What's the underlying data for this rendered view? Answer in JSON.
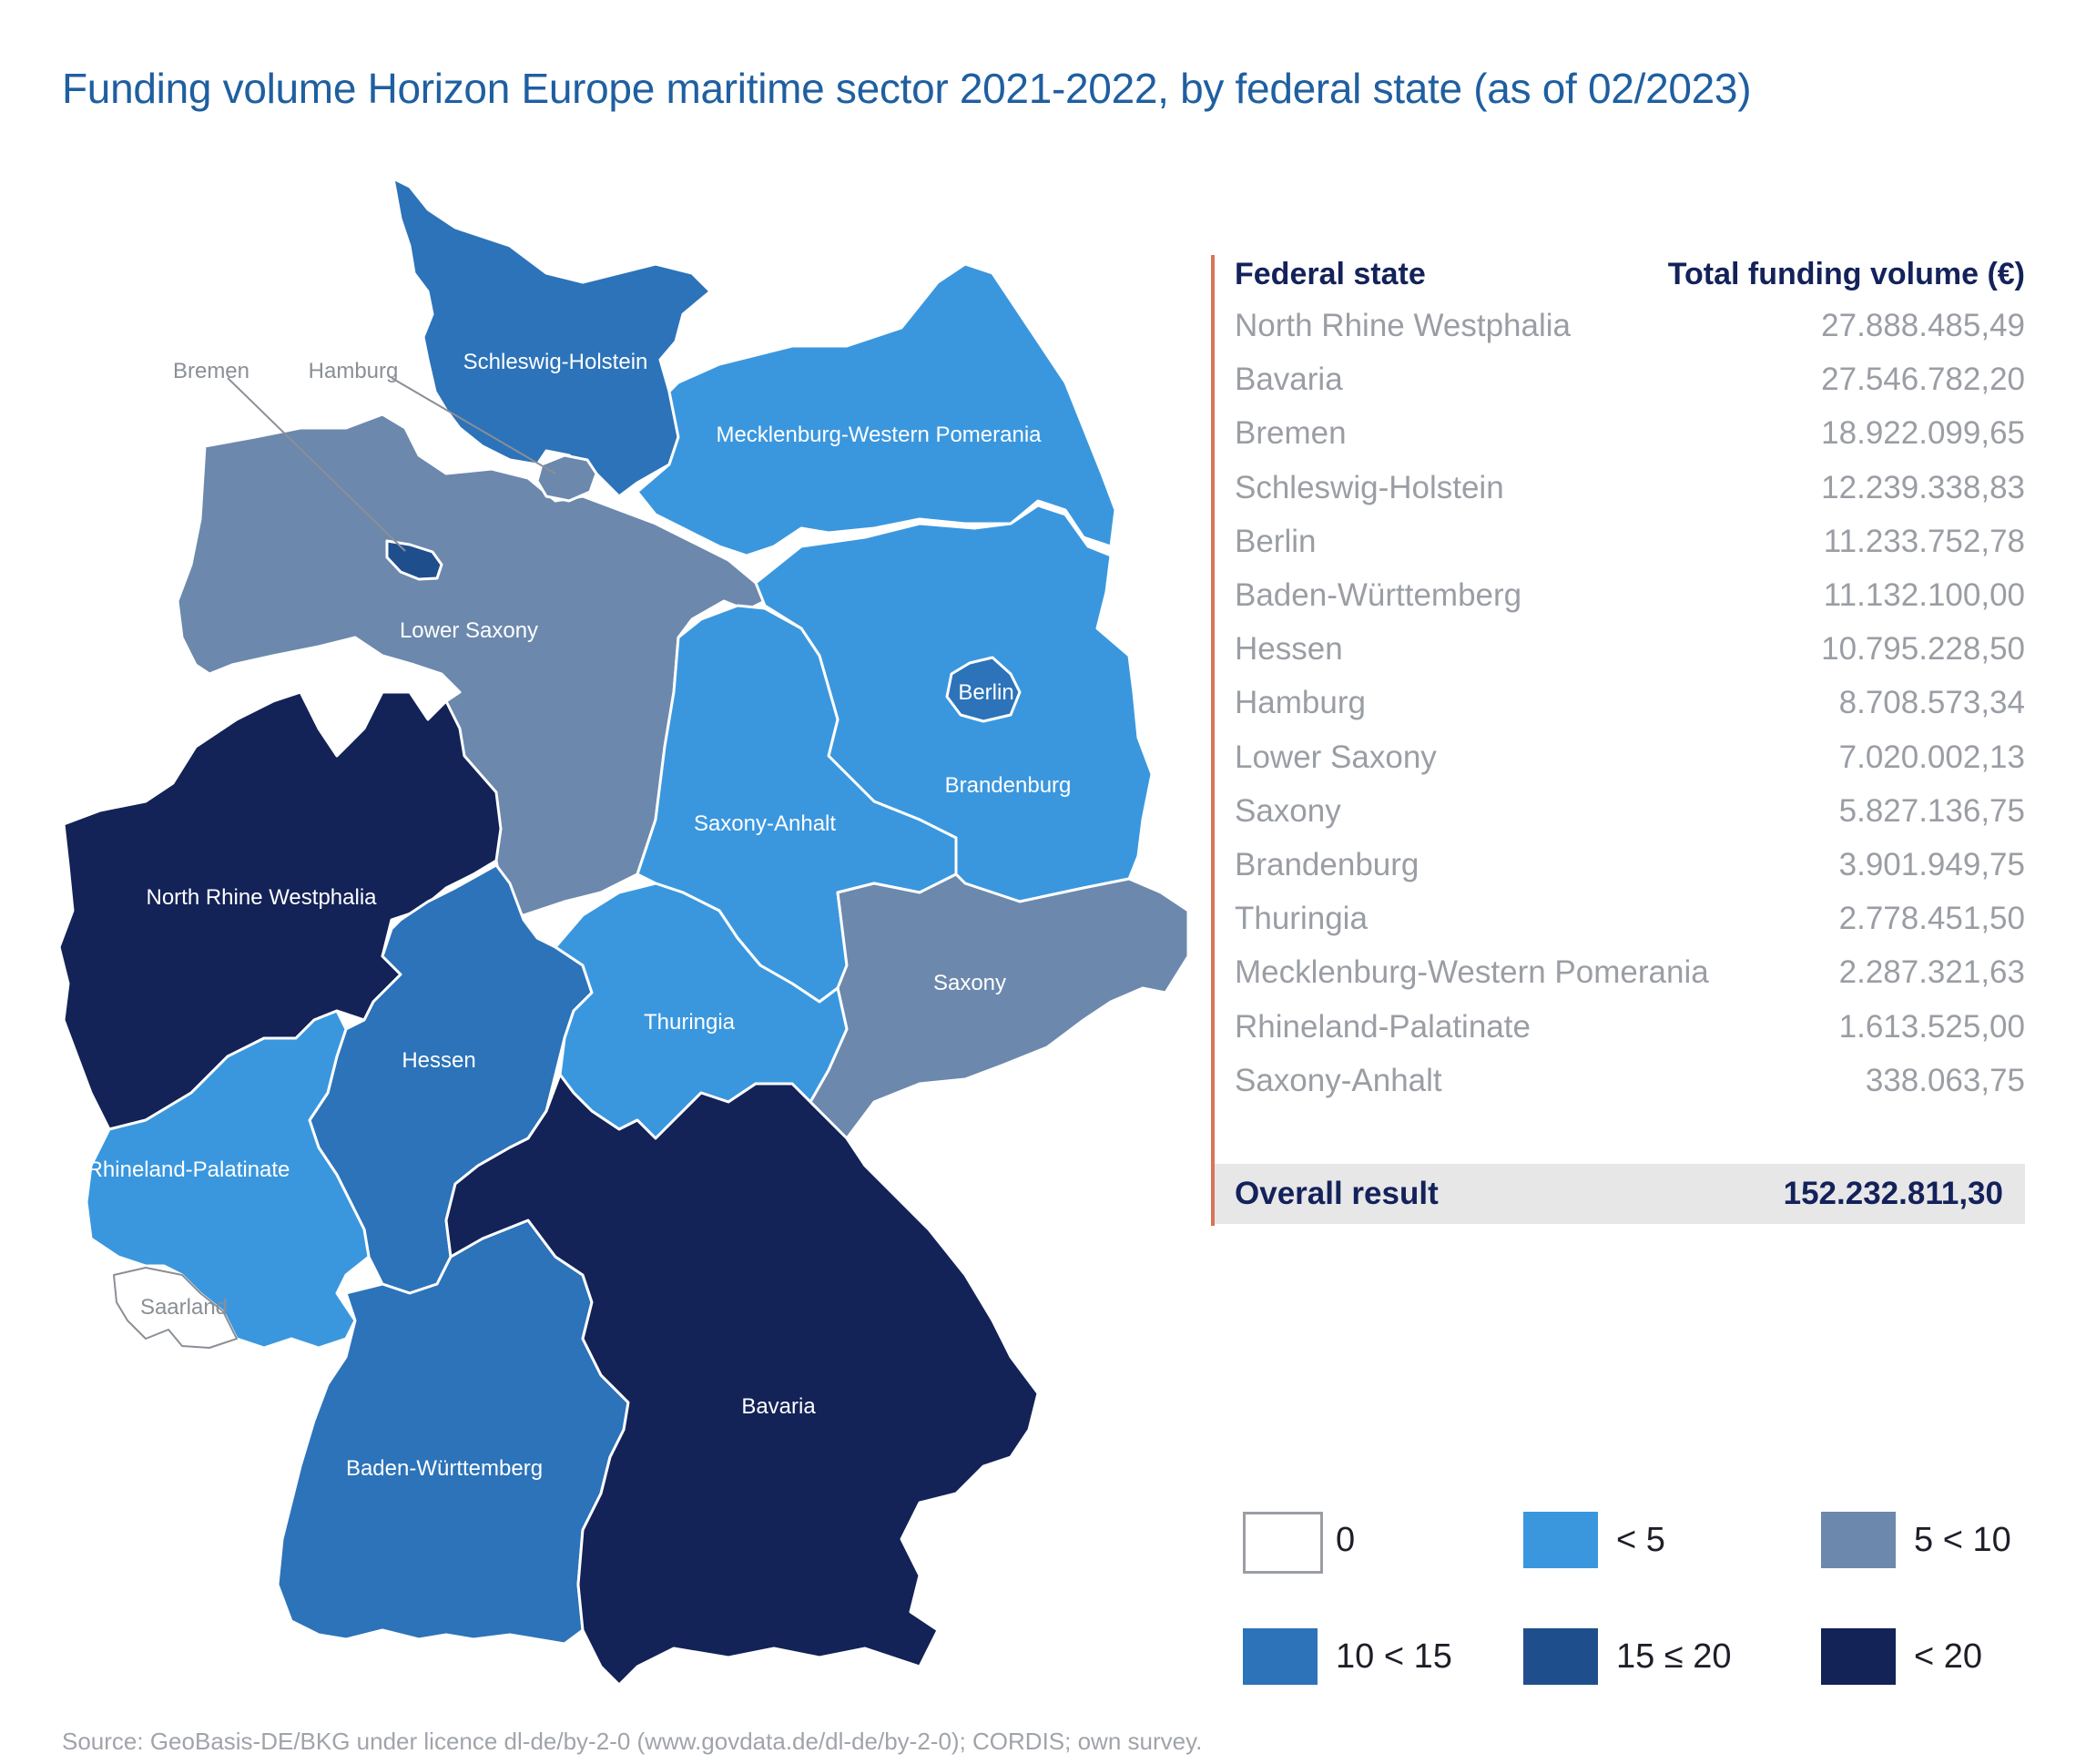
{
  "title": "Funding volume Horizon Europe maritime sector 2021-2022, by federal state (as of 02/2023)",
  "colors": {
    "zero": "#ffffff",
    "lt5": "#3a97de",
    "5to10": "#6c88ad",
    "10to15": "#2c73b9",
    "15to20": "#1f4e8c",
    "gt20": "#132257",
    "accent_line": "#d9735a",
    "title_blue": "#1f5fa0"
  },
  "map": {
    "labels": {
      "schleswig_holstein": "Schleswig-Holstein",
      "mecklenburg": "Mecklenburg-Western Pomerania",
      "lower_saxony": "Lower Saxony",
      "bremen": "Bremen",
      "hamburg": "Hamburg",
      "berlin": "Berlin",
      "brandenburg": "Brandenburg",
      "saxony_anhalt": "Saxony-Anhalt",
      "saxony": "Saxony",
      "nrw": "North Rhine Westphalia",
      "hessen": "Hessen",
      "thuringia": "Thuringia",
      "rhineland": "Rhineland-Palatinate",
      "saarland": "Saarland",
      "bavaria": "Bavaria",
      "baden": "Baden-Württemberg"
    }
  },
  "table": {
    "header_state": "Federal state",
    "header_volume": "Total funding volume (€)",
    "rows": [
      {
        "state": "North Rhine Westphalia",
        "value": "27.888.485,49"
      },
      {
        "state": "Bavaria",
        "value": "27.546.782,20"
      },
      {
        "state": "Bremen",
        "value": "18.922.099,65"
      },
      {
        "state": "Schleswig-Holstein",
        "value": "12.239.338,83"
      },
      {
        "state": "Berlin",
        "value": "11.233.752,78"
      },
      {
        "state": "Baden-Württemberg",
        "value": "11.132.100,00"
      },
      {
        "state": "Hessen",
        "value": "10.795.228,50"
      },
      {
        "state": "Hamburg",
        "value": "8.708.573,34"
      },
      {
        "state": "Lower Saxony",
        "value": "7.020.002,13"
      },
      {
        "state": "Saxony",
        "value": "5.827.136,75"
      },
      {
        "state": "Brandenburg",
        "value": "3.901.949,75"
      },
      {
        "state": "Thuringia",
        "value": "2.778.451,50"
      },
      {
        "state": "Mecklenburg-Western Pomerania",
        "value": "2.287.321,63"
      },
      {
        "state": "Rhineland-Palatinate",
        "value": "1.613.525,00"
      },
      {
        "state": "Saxony-Anhalt",
        "value": "338.063,75"
      }
    ],
    "total_label": "Overall result",
    "total_value": "152.232.811,30"
  },
  "legend": [
    {
      "label": "0",
      "color": "#ffffff"
    },
    {
      "label": "< 5",
      "color": "#3a97de"
    },
    {
      "label": "5 < 10",
      "color": "#6c88ad"
    },
    {
      "label": "10 < 15",
      "color": "#2c73b9"
    },
    {
      "label": "15 ≤ 20",
      "color": "#1f4e8c"
    },
    {
      "label": "< 20",
      "color": "#132257"
    }
  ],
  "source": "Source: GeoBasis-DE/BKG under licence dl-de/by-2-0 (www.govdata.de/dl-de/by-2-0); CORDIS; own survey."
}
